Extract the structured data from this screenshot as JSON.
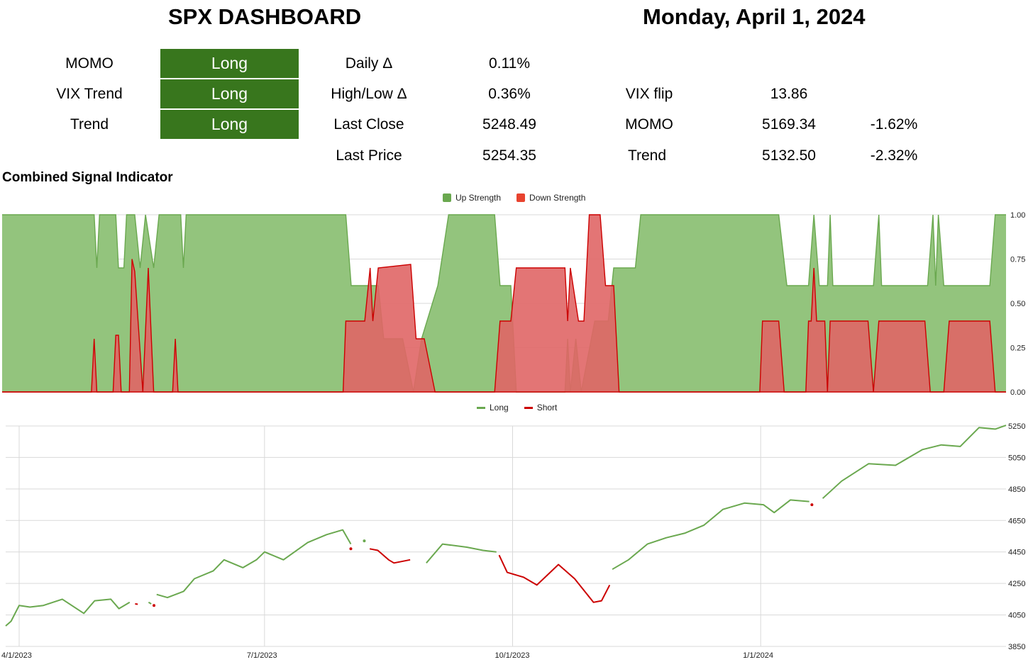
{
  "header": {
    "title": "SPX DASHBOARD",
    "date": "Monday, April 1, 2024"
  },
  "signals": [
    {
      "label": "MOMO",
      "value": "Long"
    },
    {
      "label": "VIX Trend",
      "value": "Long"
    },
    {
      "label": "Trend",
      "value": "Long"
    }
  ],
  "stats": [
    {
      "label": "Daily Δ",
      "value": "0.11%"
    },
    {
      "label": "High/Low Δ",
      "value": "0.36%"
    },
    {
      "label": "Last Close",
      "value": "5248.49"
    },
    {
      "label": "Last Price",
      "value": "5254.35"
    }
  ],
  "levels": [
    {
      "label": "VIX flip",
      "value": "13.86",
      "pct": ""
    },
    {
      "label": "MOMO",
      "value": "5169.34",
      "pct": "-1.62%"
    },
    {
      "label": "Trend",
      "value": "5132.50",
      "pct": "-2.32%"
    }
  ],
  "colors": {
    "signal_bg": "#38761d",
    "up_fill": "#93c47d",
    "up_line": "#6aa84f",
    "down_fill": "#e06666",
    "down_line": "#cc0000",
    "long": "#6aa84f",
    "short": "#cc0000"
  },
  "chart_data": [
    {
      "type": "area",
      "title": "Combined Signal Indicator",
      "ylim": [
        0,
        1
      ],
      "yticks": [
        "0.00",
        "0.25",
        "0.50",
        "0.75",
        "1.00"
      ],
      "grid": true,
      "legend_position": "top",
      "x_range": [
        "3/27/2023",
        "4/1/2024"
      ],
      "series": [
        {
          "name": "Up Strength",
          "color": "#6aa84f",
          "points": [
            [
              "2023-03-27",
              1.0
            ],
            [
              "2023-04-30",
              1.0
            ],
            [
              "2023-05-01",
              0.7
            ],
            [
              "2023-05-02",
              1.0
            ],
            [
              "2023-05-08",
              1.0
            ],
            [
              "2023-05-09",
              0.7
            ],
            [
              "2023-05-11",
              0.7
            ],
            [
              "2023-05-12",
              1.0
            ],
            [
              "2023-05-15",
              1.0
            ],
            [
              "2023-05-17",
              0.7
            ],
            [
              "2023-05-19",
              1.0
            ],
            [
              "2023-05-22",
              0.7
            ],
            [
              "2023-05-24",
              1.0
            ],
            [
              "2023-06-01",
              1.0
            ],
            [
              "2023-06-02",
              0.7
            ],
            [
              "2023-06-03",
              1.0
            ],
            [
              "2023-08-01",
              1.0
            ],
            [
              "2023-08-03",
              0.6
            ],
            [
              "2023-08-13",
              0.6
            ],
            [
              "2023-08-15",
              0.3
            ],
            [
              "2023-08-22",
              0.3
            ],
            [
              "2023-08-26",
              0.0
            ],
            [
              "2023-08-29",
              0.3
            ],
            [
              "2023-09-04",
              0.6
            ],
            [
              "2023-09-08",
              1.0
            ],
            [
              "2023-09-25",
              1.0
            ],
            [
              "2023-09-27",
              0.6
            ],
            [
              "2023-10-01",
              0.6
            ],
            [
              "2023-10-03",
              0.0
            ],
            [
              "2023-10-21",
              0.0
            ],
            [
              "2023-10-22",
              0.3
            ],
            [
              "2023-10-23",
              0.0
            ],
            [
              "2023-10-25",
              0.3
            ],
            [
              "2023-10-27",
              0.0
            ],
            [
              "2023-11-01",
              0.4
            ],
            [
              "2023-11-06",
              0.4
            ],
            [
              "2023-11-08",
              0.7
            ],
            [
              "2023-11-16",
              0.7
            ],
            [
              "2023-11-18",
              1.0
            ],
            [
              "2024-01-08",
              1.0
            ],
            [
              "2024-01-11",
              0.6
            ],
            [
              "2024-01-19",
              0.6
            ],
            [
              "2024-01-21",
              1.0
            ],
            [
              "2024-01-23",
              0.6
            ],
            [
              "2024-01-26",
              0.6
            ],
            [
              "2024-01-27",
              1.0
            ],
            [
              "2024-01-28",
              0.6
            ],
            [
              "2024-02-12",
              0.6
            ],
            [
              "2024-02-14",
              1.0
            ],
            [
              "2024-02-15",
              0.6
            ],
            [
              "2024-03-03",
              0.6
            ],
            [
              "2024-03-05",
              1.0
            ],
            [
              "2024-03-06",
              0.6
            ],
            [
              "2024-03-07",
              1.0
            ],
            [
              "2024-03-09",
              0.6
            ],
            [
              "2024-03-26",
              0.6
            ],
            [
              "2024-03-28",
              1.0
            ],
            [
              "2024-04-01",
              1.0
            ]
          ]
        },
        {
          "name": "Down Strength",
          "color": "#cc0000",
          "points": [
            [
              "2023-03-27",
              0
            ],
            [
              "2023-04-29",
              0
            ],
            [
              "2023-04-30",
              0.3
            ],
            [
              "2023-05-01",
              0
            ],
            [
              "2023-05-07",
              0
            ],
            [
              "2023-05-08",
              0.32
            ],
            [
              "2023-05-09",
              0.32
            ],
            [
              "2023-05-10",
              0
            ],
            [
              "2023-05-13",
              0
            ],
            [
              "2023-05-14",
              0.75
            ],
            [
              "2023-05-15",
              0.68
            ],
            [
              "2023-05-18",
              0
            ],
            [
              "2023-05-20",
              0.7
            ],
            [
              "2023-05-22",
              0
            ],
            [
              "2023-05-29",
              0
            ],
            [
              "2023-05-30",
              0.3
            ],
            [
              "2023-05-31",
              0
            ],
            [
              "2023-07-31",
              0
            ],
            [
              "2023-08-01",
              0.4
            ],
            [
              "2023-08-08",
              0.4
            ],
            [
              "2023-08-10",
              0.7
            ],
            [
              "2023-08-11",
              0.4
            ],
            [
              "2023-08-13",
              0.7
            ],
            [
              "2023-08-25",
              0.72
            ],
            [
              "2023-08-27",
              0.3
            ],
            [
              "2023-08-30",
              0.3
            ],
            [
              "2023-09-03",
              0.0
            ],
            [
              "2023-09-25",
              0.0
            ],
            [
              "2023-09-27",
              0.4
            ],
            [
              "2023-10-01",
              0.4
            ],
            [
              "2023-10-03",
              0.7
            ],
            [
              "2023-10-21",
              0.7
            ],
            [
              "2023-10-22",
              0.4
            ],
            [
              "2023-10-23",
              0.7
            ],
            [
              "2023-10-26",
              0.4
            ],
            [
              "2023-10-28",
              0.4
            ],
            [
              "2023-10-30",
              1.0
            ],
            [
              "2023-11-03",
              1.0
            ],
            [
              "2023-11-05",
              0.6
            ],
            [
              "2023-11-08",
              0.6
            ],
            [
              "2023-11-10",
              0.0
            ],
            [
              "2024-01-01",
              0.0
            ],
            [
              "2024-01-02",
              0.4
            ],
            [
              "2024-01-08",
              0.4
            ],
            [
              "2024-01-10",
              0.0
            ],
            [
              "2024-01-18",
              0.0
            ],
            [
              "2024-01-19",
              0.4
            ],
            [
              "2024-01-20",
              0.4
            ],
            [
              "2024-01-21",
              0.7
            ],
            [
              "2024-01-22",
              0.4
            ],
            [
              "2024-01-23",
              0.4
            ],
            [
              "2024-01-25",
              0.4
            ],
            [
              "2024-01-26",
              0.0
            ],
            [
              "2024-01-27",
              0.4
            ],
            [
              "2024-02-10",
              0.4
            ],
            [
              "2024-02-12",
              0.0
            ],
            [
              "2024-02-14",
              0.4
            ],
            [
              "2024-03-02",
              0.4
            ],
            [
              "2024-03-04",
              0.0
            ],
            [
              "2024-03-09",
              0.0
            ],
            [
              "2024-03-11",
              0.4
            ],
            [
              "2024-03-26",
              0.4
            ],
            [
              "2024-03-28",
              0.0
            ],
            [
              "2024-04-01",
              0.0
            ]
          ]
        }
      ]
    },
    {
      "type": "line",
      "ylim": [
        3850,
        5250
      ],
      "yticks": [
        "3850",
        "4050",
        "4250",
        "4450",
        "4650",
        "4850",
        "5050",
        "5250"
      ],
      "xticks": [
        "4/1/2023",
        "7/1/2023",
        "10/1/2023",
        "1/1/2024"
      ],
      "grid": true,
      "legend_position": "top",
      "series": [
        {
          "name": "Long",
          "color": "#6aa84f",
          "segments": [
            [
              [
                "2023-03-27",
                3980
              ],
              [
                "2023-03-29",
                4010
              ],
              [
                "2023-04-01",
                4110
              ],
              [
                "2023-04-05",
                4100
              ],
              [
                "2023-04-10",
                4110
              ],
              [
                "2023-04-17",
                4150
              ],
              [
                "2023-04-25",
                4060
              ],
              [
                "2023-04-29",
                4140
              ],
              [
                "2023-05-05",
                4150
              ],
              [
                "2023-05-08",
                4090
              ],
              [
                "2023-05-12",
                4130
              ]
            ],
            [
              [
                "2023-05-19",
                4130
              ],
              [
                "2023-05-20",
                4120
              ]
            ],
            [
              [
                "2023-05-22",
                4180
              ],
              [
                "2023-05-26",
                4160
              ],
              [
                "2023-06-01",
                4200
              ],
              [
                "2023-06-05",
                4280
              ],
              [
                "2023-06-12",
                4330
              ],
              [
                "2023-06-16",
                4400
              ],
              [
                "2023-06-23",
                4350
              ],
              [
                "2023-06-28",
                4400
              ],
              [
                "2023-07-01",
                4450
              ],
              [
                "2023-07-08",
                4400
              ],
              [
                "2023-07-17",
                4510
              ],
              [
                "2023-07-24",
                4560
              ],
              [
                "2023-07-30",
                4590
              ],
              [
                "2023-08-02",
                4500
              ]
            ],
            [
              [
                "2023-08-07",
                4520
              ],
              [
                "2023-08-07",
                4520
              ]
            ],
            [
              [
                "2023-08-30",
                4380
              ],
              [
                "2023-09-05",
                4500
              ],
              [
                "2023-09-14",
                4480
              ],
              [
                "2023-09-20",
                4460
              ],
              [
                "2023-09-25",
                4450
              ]
            ],
            [
              [
                "2023-11-07",
                4340
              ],
              [
                "2023-11-13",
                4400
              ],
              [
                "2023-11-20",
                4500
              ],
              [
                "2023-11-27",
                4540
              ],
              [
                "2023-12-04",
                4570
              ],
              [
                "2023-12-11",
                4620
              ],
              [
                "2023-12-18",
                4720
              ],
              [
                "2023-12-26",
                4760
              ],
              [
                "2024-01-02",
                4750
              ],
              [
                "2024-01-06",
                4700
              ],
              [
                "2024-01-12",
                4780
              ],
              [
                "2024-01-19",
                4770
              ]
            ],
            [
              [
                "2024-01-24",
                4790
              ],
              [
                "2024-01-31",
                4900
              ],
              [
                "2024-02-10",
                5010
              ],
              [
                "2024-02-20",
                5000
              ],
              [
                "2024-03-01",
                5100
              ],
              [
                "2024-03-08",
                5130
              ],
              [
                "2024-03-15",
                5120
              ],
              [
                "2024-03-22",
                5240
              ],
              [
                "2024-03-28",
                5230
              ],
              [
                "2024-04-01",
                5254
              ]
            ]
          ]
        },
        {
          "name": "Short",
          "color": "#cc0000",
          "segments": [
            [
              [
                "2023-05-14",
                4120
              ],
              [
                "2023-05-15",
                4118
              ]
            ],
            [
              [
                "2023-05-21",
                4110
              ],
              [
                "2023-05-21",
                4110
              ]
            ],
            [
              [
                "2023-08-02",
                4470
              ],
              [
                "2023-08-02",
                4470
              ]
            ],
            [
              [
                "2023-08-09",
                4470
              ],
              [
                "2023-08-12",
                4460
              ],
              [
                "2023-08-16",
                4400
              ],
              [
                "2023-08-18",
                4380
              ],
              [
                "2023-08-24",
                4400
              ]
            ],
            [
              [
                "2023-09-26",
                4430
              ],
              [
                "2023-09-29",
                4320
              ],
              [
                "2023-10-05",
                4290
              ],
              [
                "2023-10-10",
                4240
              ],
              [
                "2023-10-18",
                4370
              ],
              [
                "2023-10-24",
                4280
              ],
              [
                "2023-10-31",
                4130
              ],
              [
                "2023-11-03",
                4140
              ],
              [
                "2023-11-06",
                4240
              ]
            ],
            [
              [
                "2024-01-20",
                4750
              ],
              [
                "2024-01-20",
                4750
              ]
            ]
          ]
        }
      ]
    }
  ]
}
